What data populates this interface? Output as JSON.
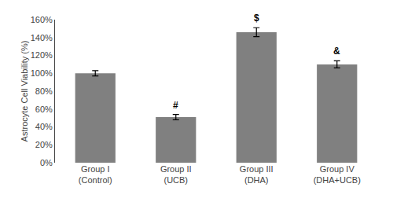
{
  "chart_data": {
    "type": "bar",
    "categories": [
      "Group I\n(Control)",
      "Group II\n(UCB)",
      "Group III\n(DHA)",
      "Group IV\n(DHA+UCB)"
    ],
    "values": [
      100,
      51,
      146,
      110
    ],
    "errors": [
      3,
      3,
      5,
      4
    ],
    "color": "#808080",
    "ylabel": "Astrocyte Cell Viability (%)",
    "ylim": [
      0,
      160
    ],
    "yticks": [
      {
        "value": 0,
        "label": "0%"
      },
      {
        "value": 20,
        "label": "20%"
      },
      {
        "value": 40,
        "label": "40%"
      },
      {
        "value": 60,
        "label": "60%"
      },
      {
        "value": 80,
        "label": "80%"
      },
      {
        "value": 100,
        "label": "100%"
      },
      {
        "value": 120,
        "label": "120%"
      },
      {
        "value": 140,
        "label": "140%"
      },
      {
        "value": 160,
        "label": "160%"
      }
    ],
    "annotations": [
      null,
      "#",
      "$",
      "&"
    ],
    "grid": false
  }
}
